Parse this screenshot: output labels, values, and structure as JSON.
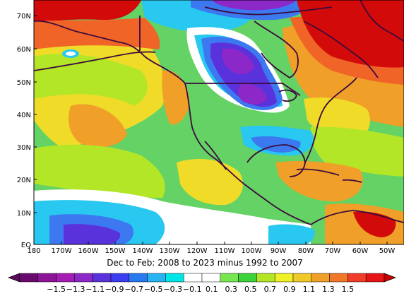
{
  "title": "Dec to Feb: 2008 to 2023 minus 1992 to 2007",
  "lat_labels": [
    "70N",
    "60N",
    "50N",
    "40N",
    "30N",
    "20N",
    "10N",
    "EQ"
  ],
  "lon_labels": [
    "180",
    "170W",
    "160W",
    "150W",
    "140W",
    "130W",
    "120W",
    "110W",
    "100W",
    "90W",
    "80W",
    "70W",
    "60W",
    "50W"
  ],
  "colorbar": {
    "labels": [
      "-1.5",
      "-1.3",
      "-1.1",
      "-0.9",
      "-0.7",
      "-0.5",
      "-0.3",
      "-0.1",
      "0.1",
      "0.3",
      "0.5",
      "0.7",
      "0.9",
      "1.1",
      "1.3",
      "1.5"
    ],
    "colors": [
      "#6a0a6e",
      "#8c1496",
      "#a51eb4",
      "#8c28c8",
      "#5a32dc",
      "#3c3cf0",
      "#2878f0",
      "#28b4f0",
      "#00e6e6",
      "#ffffff",
      "#ffffff",
      "#78e650",
      "#3cd23c",
      "#b4e628",
      "#f0f028",
      "#f0c828",
      "#f0a028",
      "#f07828",
      "#f03c28",
      "#e61414"
    ],
    "under_color": "#5a0a5a",
    "over_color": "#c80000"
  },
  "anomaly_colors": {
    "strong_pos": "#d20a0a",
    "pos": "#f06428",
    "mid_pos": "#f0a028",
    "weak_pos": "#f0dc28",
    "slight_pos": "#b4e628",
    "near_zero": "#64d264",
    "zero": "#ffffff",
    "slight_neg": "#28c8f0",
    "neg": "#3c78f0",
    "mid_neg": "#5a32dc",
    "strong_neg": "#8c28c8",
    "land_outline": "#3c0a3c"
  }
}
